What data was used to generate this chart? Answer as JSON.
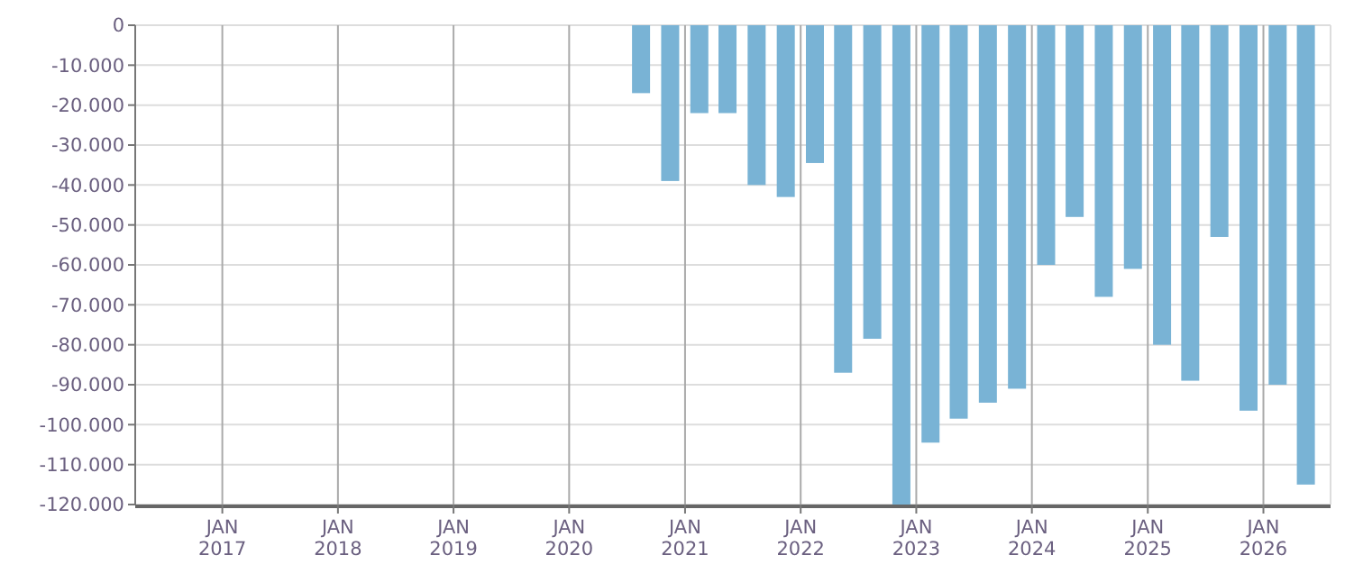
{
  "chart_data": {
    "type": "bar",
    "color": "#79b3d5",
    "grid": true,
    "x": [
      "2020-08-15",
      "2020-11-15",
      "2021-02-15",
      "2021-05-15",
      "2021-08-15",
      "2021-11-15",
      "2022-02-15",
      "2022-05-15",
      "2022-08-15",
      "2022-11-15",
      "2023-02-15",
      "2023-05-15",
      "2023-08-15",
      "2023-11-15",
      "2024-02-15",
      "2024-05-15",
      "2024-08-15",
      "2024-11-15",
      "2025-02-15",
      "2025-05-15",
      "2025-08-15",
      "2025-11-15",
      "2026-02-15",
      "2026-05-15"
    ],
    "values": [
      -17000,
      -39000,
      -22000,
      -22000,
      -40000,
      -43000,
      -34500,
      -87000,
      -78500,
      -120000,
      -104500,
      -98500,
      -94500,
      -91000,
      -60000,
      -48000,
      -68000,
      -61000,
      -80000,
      -89000,
      -53000,
      -96500,
      -90000,
      -115000
    ],
    "xlim": [
      "2016-04-01",
      "2026-08-01"
    ],
    "xticks": [
      {
        "value": "2017-01-01",
        "label": "JAN\n2017"
      },
      {
        "value": "2018-01-01",
        "label": "JAN\n2018"
      },
      {
        "value": "2019-01-01",
        "label": "JAN\n2019"
      },
      {
        "value": "2020-01-01",
        "label": "JAN\n2020"
      },
      {
        "value": "2021-01-01",
        "label": "JAN\n2021"
      },
      {
        "value": "2022-01-01",
        "label": "JAN\n2022"
      },
      {
        "value": "2023-01-01",
        "label": "JAN\n2023"
      },
      {
        "value": "2024-01-01",
        "label": "JAN\n2024"
      },
      {
        "value": "2025-01-01",
        "label": "JAN\n2025"
      },
      {
        "value": "2026-01-01",
        "label": "JAN\n2026"
      }
    ],
    "ylim": [
      -120000,
      0
    ],
    "yticks": [
      0,
      {
        "value": -10000,
        "label": "-10.000"
      },
      {
        "value": -20000,
        "label": "-20.000"
      },
      {
        "value": -30000,
        "label": "-30.000"
      },
      {
        "value": -40000,
        "label": "-40.000"
      },
      {
        "value": -50000,
        "label": "-50.000"
      },
      {
        "value": -60000,
        "label": "-60.000"
      },
      {
        "value": -70000,
        "label": "-70.000"
      },
      {
        "value": -80000,
        "label": "-80.000"
      },
      {
        "value": -90000,
        "label": "-90.000"
      },
      {
        "value": -100000,
        "label": "-100.000"
      },
      {
        "value": -110000,
        "label": "-110.000"
      },
      {
        "value": -120000,
        "label": "-120.000"
      }
    ]
  }
}
